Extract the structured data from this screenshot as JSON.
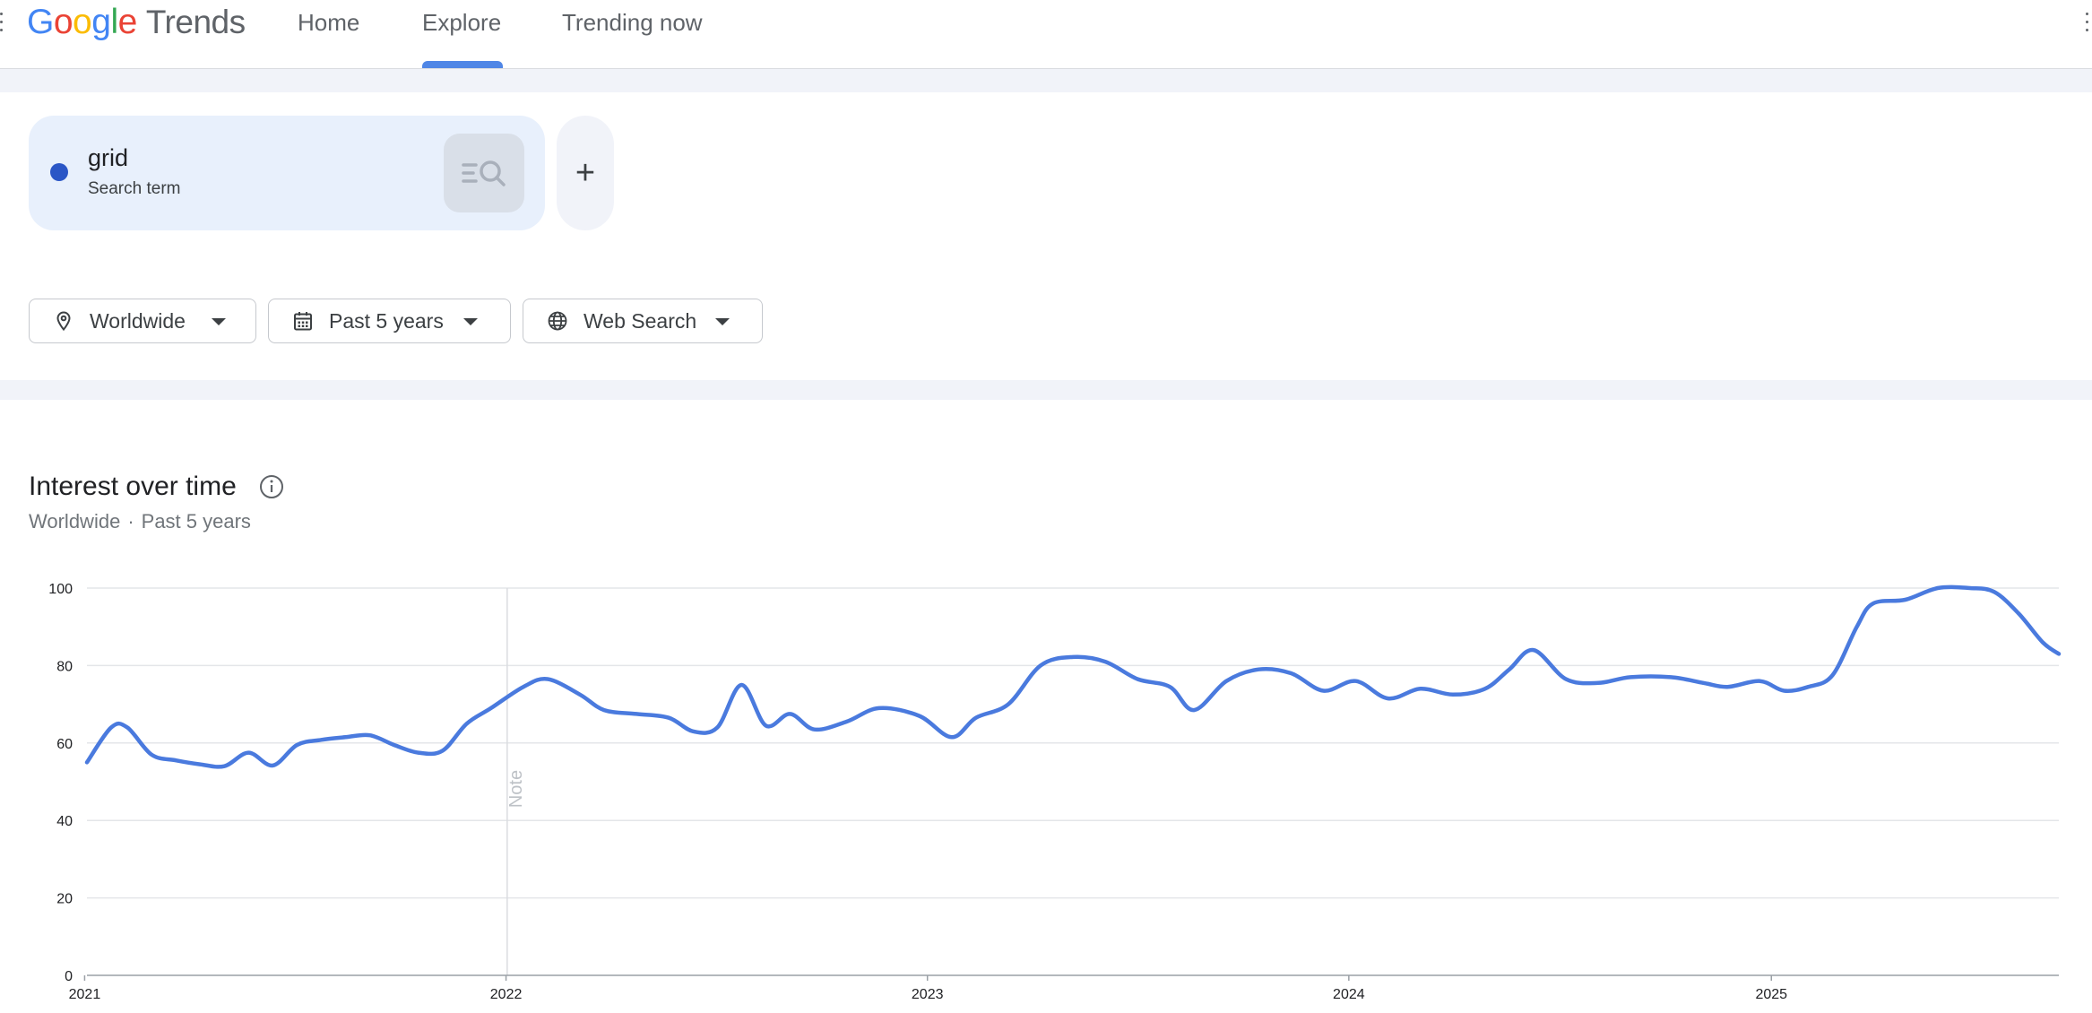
{
  "header": {
    "logo_google": [
      "G",
      "o",
      "o",
      "g",
      "l",
      "e"
    ],
    "logo_trends": "Trends",
    "tabs": [
      {
        "label": "Home"
      },
      {
        "label": "Explore",
        "active": true
      },
      {
        "label": "Trending now"
      }
    ]
  },
  "search": {
    "term": "grid",
    "term_type": "Search term",
    "term_color": "#2a56c6",
    "add_label": "+"
  },
  "filters": {
    "region": "Worldwide",
    "time_range": "Past 5 years",
    "property": "Web Search"
  },
  "chart_section": {
    "title": "Interest over time",
    "subtitle_region": "Worldwide",
    "subtitle_separator": "·",
    "subtitle_time": "Past 5 years"
  },
  "chart_data": {
    "type": "line",
    "series": [
      {
        "name": "grid",
        "color": "#4a7ade",
        "points": [
          [
            "2021-01-03",
            55
          ],
          [
            "2021-01-24",
            64
          ],
          [
            "2021-02-07",
            64
          ],
          [
            "2021-02-28",
            57
          ],
          [
            "2021-03-21",
            55.5
          ],
          [
            "2021-04-11",
            54.5
          ],
          [
            "2021-05-02",
            54
          ],
          [
            "2021-05-23",
            57.5
          ],
          [
            "2021-06-13",
            54.2
          ],
          [
            "2021-07-04",
            59.5
          ],
          [
            "2021-07-25",
            60.8
          ],
          [
            "2021-08-15",
            61.5
          ],
          [
            "2021-09-05",
            62
          ],
          [
            "2021-09-26",
            59.5
          ],
          [
            "2021-10-17",
            57.5
          ],
          [
            "2021-11-07",
            58
          ],
          [
            "2021-11-28",
            65
          ],
          [
            "2021-12-19",
            69
          ],
          [
            "2022-01-16",
            74.5
          ],
          [
            "2022-02-06",
            76.5
          ],
          [
            "2022-03-06",
            72.5
          ],
          [
            "2022-03-27",
            68.5
          ],
          [
            "2022-04-24",
            67.5
          ],
          [
            "2022-05-22",
            66.5
          ],
          [
            "2022-06-12",
            63
          ],
          [
            "2022-07-03",
            64
          ],
          [
            "2022-07-24",
            75
          ],
          [
            "2022-08-14",
            64.5
          ],
          [
            "2022-09-04",
            67.5
          ],
          [
            "2022-09-25",
            63.5
          ],
          [
            "2022-10-23",
            65.5
          ],
          [
            "2022-11-20",
            69
          ],
          [
            "2022-12-25",
            67
          ],
          [
            "2023-01-22",
            61.5
          ],
          [
            "2023-02-12",
            66.5
          ],
          [
            "2023-03-12",
            70
          ],
          [
            "2023-04-09",
            80
          ],
          [
            "2023-05-07",
            82.2
          ],
          [
            "2023-06-04",
            81
          ],
          [
            "2023-07-02",
            76.5
          ],
          [
            "2023-07-30",
            74.5
          ],
          [
            "2023-08-20",
            68.5
          ],
          [
            "2023-09-17",
            76
          ],
          [
            "2023-10-15",
            79
          ],
          [
            "2023-11-12",
            78
          ],
          [
            "2023-12-10",
            73.5
          ],
          [
            "2024-01-07",
            76
          ],
          [
            "2024-02-04",
            71.5
          ],
          [
            "2024-03-03",
            74
          ],
          [
            "2024-03-31",
            72.5
          ],
          [
            "2024-04-28",
            74
          ],
          [
            "2024-05-19",
            79
          ],
          [
            "2024-06-09",
            84
          ],
          [
            "2024-07-07",
            76.5
          ],
          [
            "2024-08-04",
            75.5
          ],
          [
            "2024-09-01",
            77
          ],
          [
            "2024-10-06",
            77
          ],
          [
            "2024-11-03",
            75.5
          ],
          [
            "2024-11-24",
            74.5
          ],
          [
            "2024-12-22",
            76
          ],
          [
            "2025-01-12",
            73.5
          ],
          [
            "2025-02-02",
            74.5
          ],
          [
            "2025-02-23",
            77.5
          ],
          [
            "2025-03-16",
            90
          ],
          [
            "2025-03-30",
            96
          ],
          [
            "2025-04-27",
            97
          ],
          [
            "2025-05-25",
            100
          ],
          [
            "2025-06-22",
            100
          ],
          [
            "2025-07-13",
            99
          ],
          [
            "2025-08-03",
            93.5
          ],
          [
            "2025-08-24",
            86
          ],
          [
            "2025-09-07",
            83
          ]
        ]
      }
    ],
    "ylim": [
      0,
      100
    ],
    "yticks": [
      0,
      20,
      40,
      60,
      80,
      100
    ],
    "xticks": [
      "2021",
      "2022",
      "2023",
      "2024",
      "2025"
    ],
    "x_range": [
      "2021-01-03",
      "2025-09-07"
    ],
    "annotation": {
      "x": "2022-01-02",
      "label": "Note"
    },
    "grid": true
  }
}
